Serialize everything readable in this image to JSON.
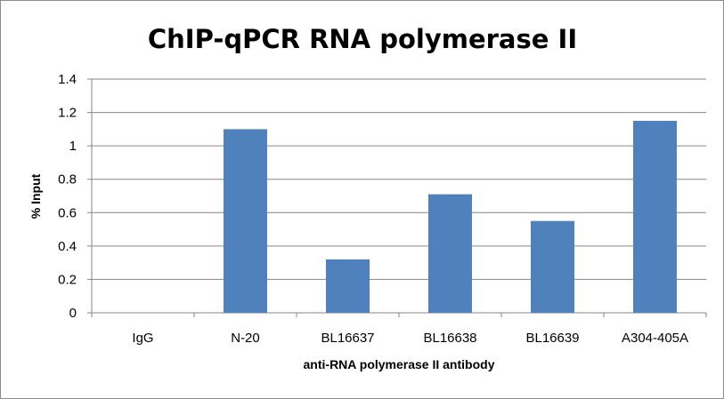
{
  "chart_data": {
    "type": "bar",
    "title": "ChIP-qPCR RNA polymerase II",
    "xlabel": "anti-RNA polymerase II antibody",
    "ylabel": "% Input",
    "categories": [
      "IgG",
      "N-20",
      "BL16637",
      "BL16638",
      "BL16639",
      "A304-405A"
    ],
    "values": [
      0,
      1.1,
      0.32,
      0.71,
      0.55,
      1.15
    ],
    "ylim": [
      0,
      1.4
    ],
    "yticks": [
      "0",
      "0.2",
      "0.4",
      "0.6",
      "0.8",
      "1",
      "1.2",
      "1.4"
    ],
    "grid": true,
    "legend": "none",
    "bar_color": "#4f81bd"
  }
}
